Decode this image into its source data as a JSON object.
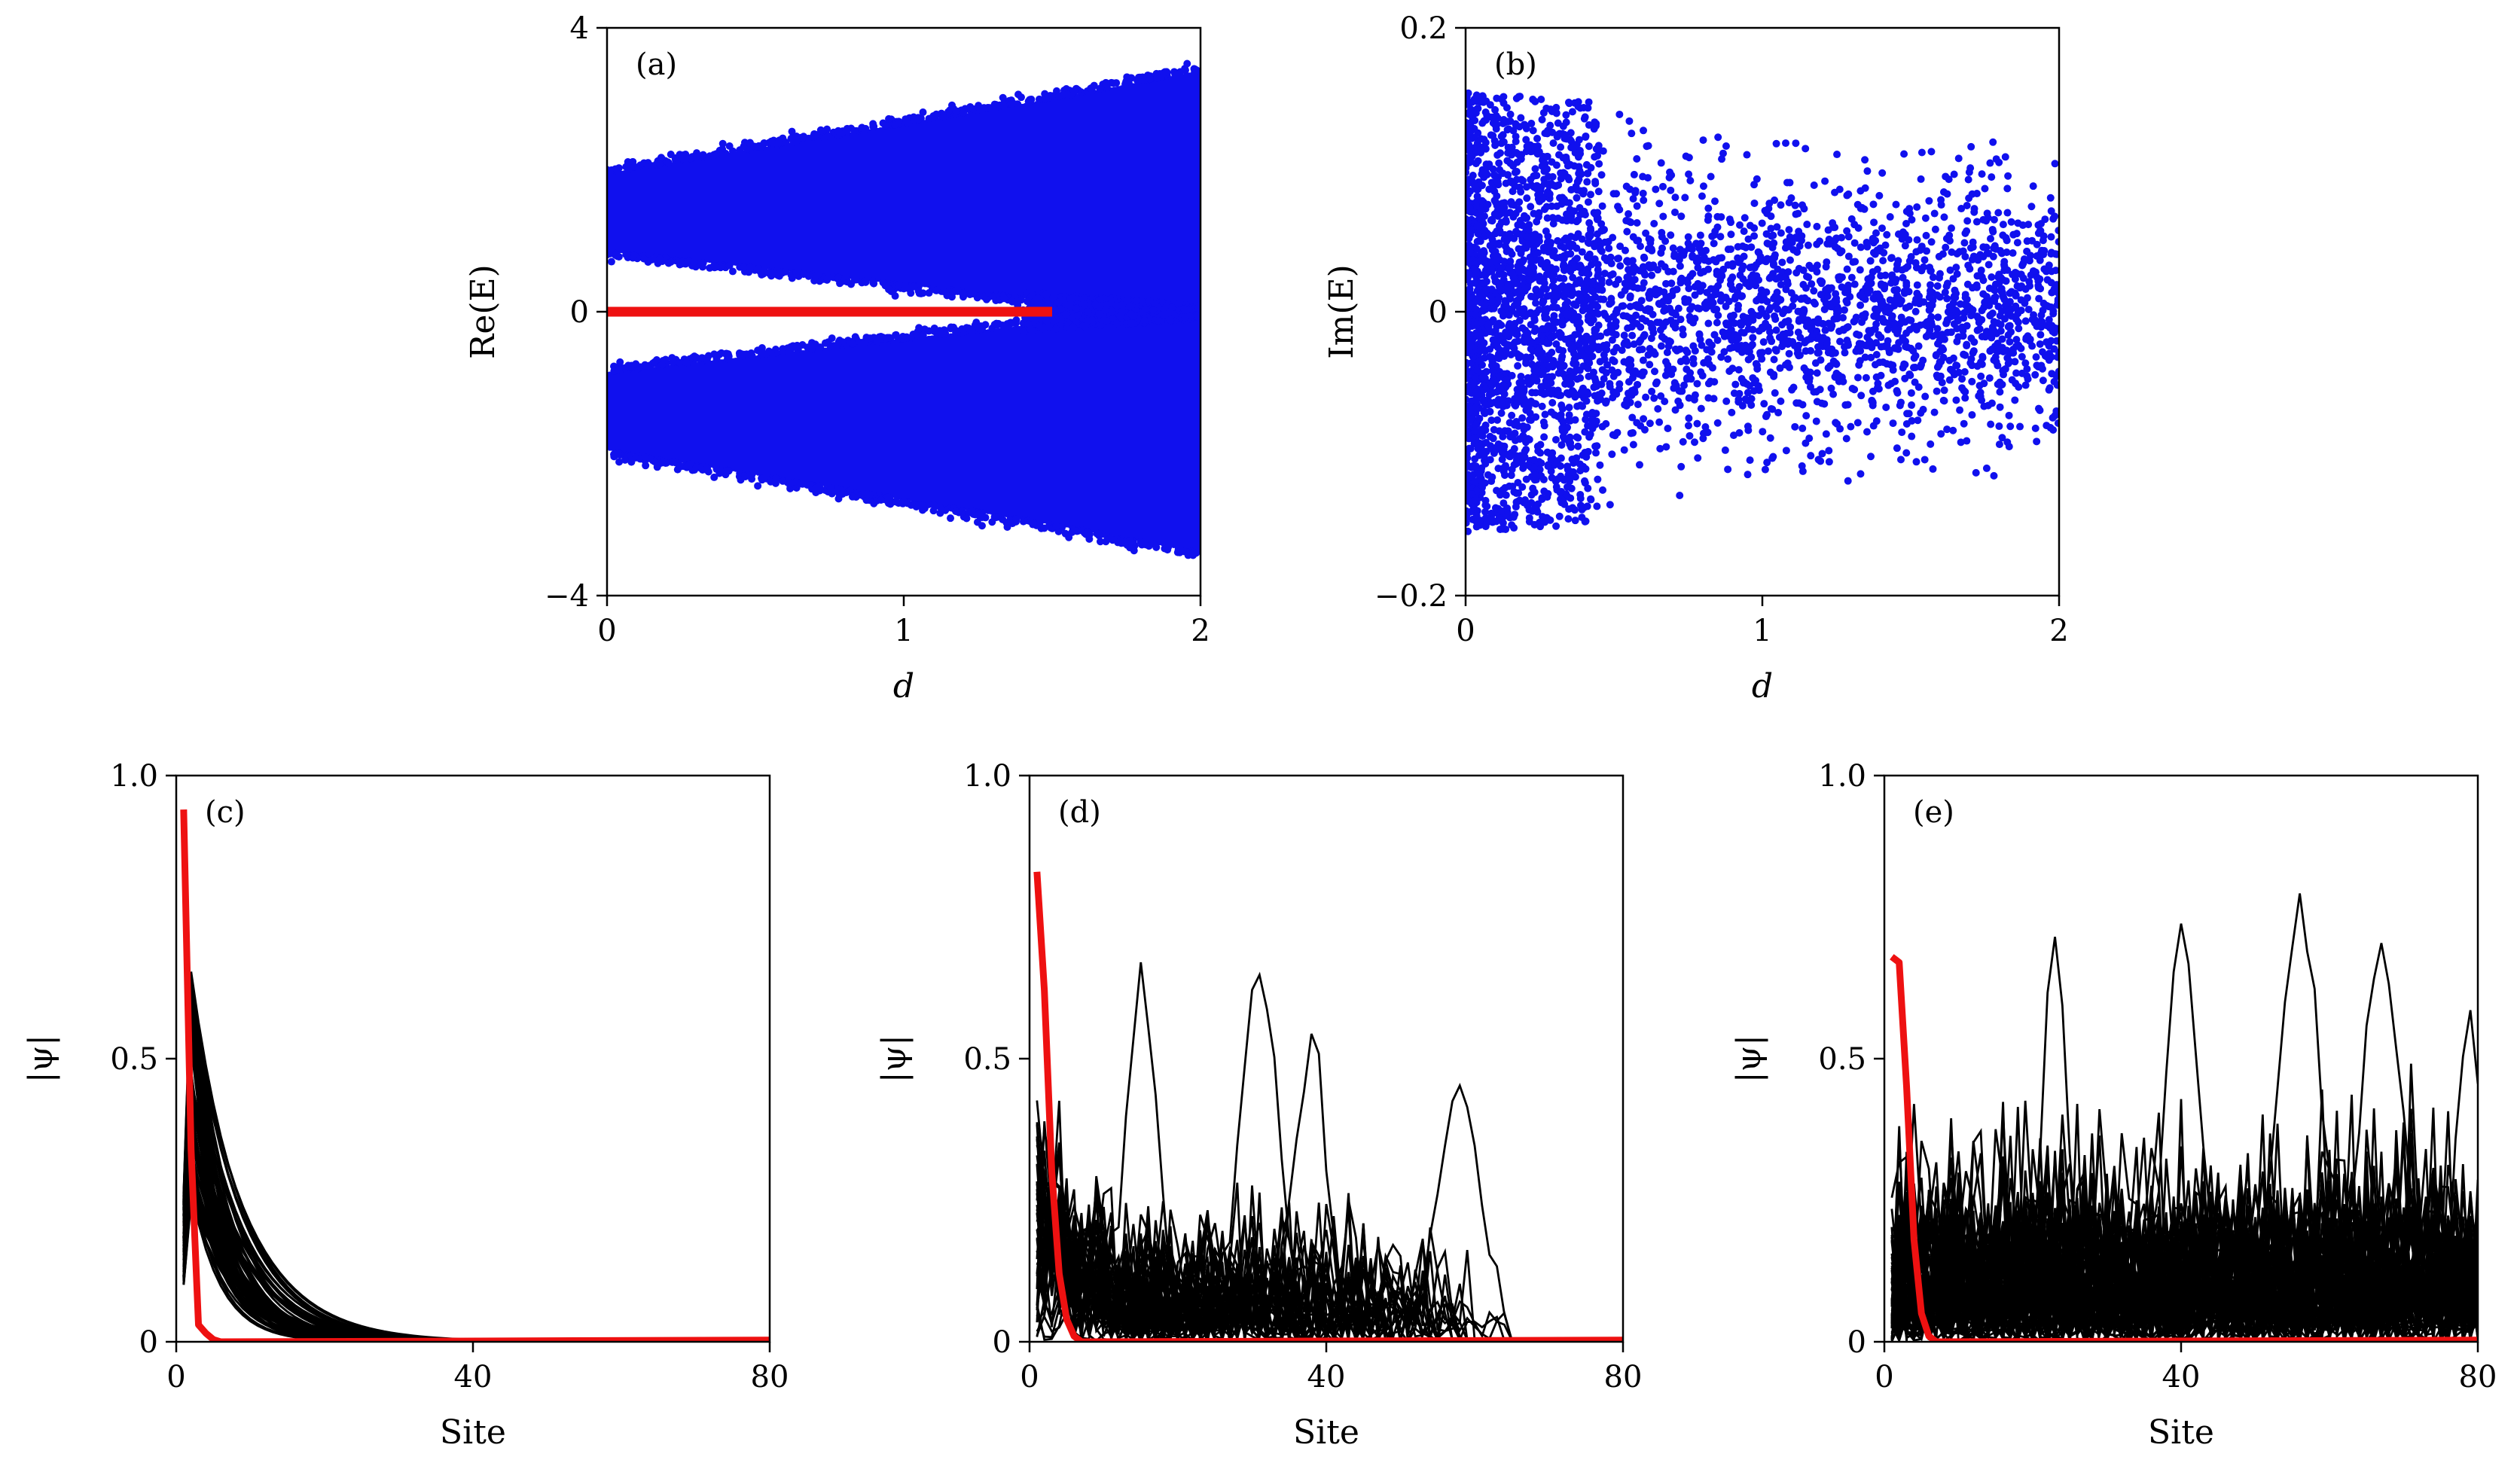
{
  "chart_data": [
    {
      "type": "scatter",
      "panel_label": "(a)",
      "xlabel": "d",
      "ylabel": "Re(E)",
      "xlim": [
        0,
        2
      ],
      "ylim": [
        -4,
        4
      ],
      "xticks": [
        "0",
        "1",
        "2"
      ],
      "yticks": [
        "−4",
        "0",
        "4"
      ],
      "xtick_values": [
        0,
        1,
        2
      ],
      "ytick_values": [
        -4,
        0,
        4
      ],
      "colors": {
        "bulk": "#1010ee",
        "edge": "#ee1111"
      },
      "series": [
        {
          "role": "bulk",
          "color": "#1010ee",
          "d": [
            0,
            0.5,
            1.0,
            1.5,
            2.0
          ],
          "outer_abs": [
            1.95,
            2.3,
            2.65,
            3.0,
            3.4
          ],
          "inner_abs": [
            0.85,
            0.62,
            0.38,
            0.15,
            0.0
          ]
        },
        {
          "role": "edge",
          "color": "#ee1111",
          "x": [
            0,
            1.5
          ],
          "y": [
            0,
            0
          ]
        }
      ]
    },
    {
      "type": "scatter",
      "panel_label": "(b)",
      "xlabel": "d",
      "ylabel": "Im(E)",
      "xlim": [
        0,
        2
      ],
      "ylim": [
        -0.2,
        0.2
      ],
      "xticks": [
        "0",
        "1",
        "2"
      ],
      "yticks": [
        "−0.2",
        "0",
        "0.2"
      ],
      "xtick_values": [
        0,
        1,
        2
      ],
      "ytick_values": [
        -0.2,
        0,
        0.2
      ],
      "series": [
        {
          "role": "bulk",
          "color": "#1010ee",
          "d": [
            0,
            0.4,
            1.0,
            2.0
          ],
          "envelope_abs": [
            0.155,
            0.15,
            0.12,
            0.12
          ]
        }
      ]
    },
    {
      "type": "line",
      "panel_label": "(c)",
      "xlabel": "Site",
      "ylabel": "|ψ|",
      "xlim": [
        0,
        80
      ],
      "ylim": [
        0,
        1.0
      ],
      "xticks": [
        "0",
        "40",
        "80"
      ],
      "yticks": [
        "0",
        "0.5",
        "1.0"
      ],
      "xtick_values": [
        0,
        40,
        80
      ],
      "ytick_values": [
        0,
        0.5,
        1.0
      ],
      "series": [
        {
          "role": "bulk",
          "color": "#000000",
          "peak_range": [
            0.25,
            0.67
          ],
          "decay_length_range": [
            3.5,
            7.5
          ]
        },
        {
          "role": "edge",
          "color": "#ee1111",
          "x": [
            1,
            2,
            3,
            4,
            5,
            6
          ],
          "y": [
            0.94,
            0.34,
            0.03,
            0.015,
            0.004,
            0.0
          ]
        }
      ]
    },
    {
      "type": "line",
      "panel_label": "(d)",
      "xlabel": "Site",
      "ylabel": "|ψ|",
      "xlim": [
        0,
        80
      ],
      "ylim": [
        0,
        1.0
      ],
      "xticks": [
        "0",
        "40",
        "80"
      ],
      "yticks": [
        "0",
        "0.5",
        "1.0"
      ],
      "xtick_values": [
        0,
        40,
        80
      ],
      "ytick_values": [
        0,
        0.5,
        1.0
      ],
      "series": [
        {
          "role": "bulk",
          "color": "#000000",
          "max_site": 64,
          "peaks": [
            [
              31,
              0.64
            ],
            [
              38,
              0.5
            ],
            [
              58,
              0.44
            ],
            [
              15,
              0.6
            ]
          ]
        },
        {
          "role": "edge",
          "color": "#ee1111",
          "x": [
            1,
            2,
            3,
            4,
            5,
            6,
            7
          ],
          "y": [
            0.83,
            0.62,
            0.3,
            0.12,
            0.04,
            0.01,
            0.0
          ]
        }
      ]
    },
    {
      "type": "line",
      "panel_label": "(e)",
      "xlabel": "Site",
      "ylabel": "|ψ|",
      "xlim": [
        0,
        80
      ],
      "ylim": [
        0,
        1.0
      ],
      "xticks": [
        "0",
        "40",
        "80"
      ],
      "yticks": [
        "0",
        "0.5",
        "1.0"
      ],
      "xtick_values": [
        0,
        40,
        80
      ],
      "ytick_values": [
        0,
        0.5,
        1.0
      ],
      "series": [
        {
          "role": "bulk",
          "color": "#000000",
          "max_site": 80,
          "peaks": [
            [
              40,
              0.73
            ],
            [
              56,
              0.73
            ],
            [
              23,
              0.68
            ],
            [
              67,
              0.67
            ],
            [
              79,
              0.53
            ]
          ]
        },
        {
          "role": "edge",
          "color": "#ee1111",
          "x": [
            1,
            2,
            3,
            4,
            5,
            6,
            7
          ],
          "y": [
            0.68,
            0.67,
            0.45,
            0.18,
            0.05,
            0.01,
            0.0
          ]
        }
      ]
    }
  ]
}
